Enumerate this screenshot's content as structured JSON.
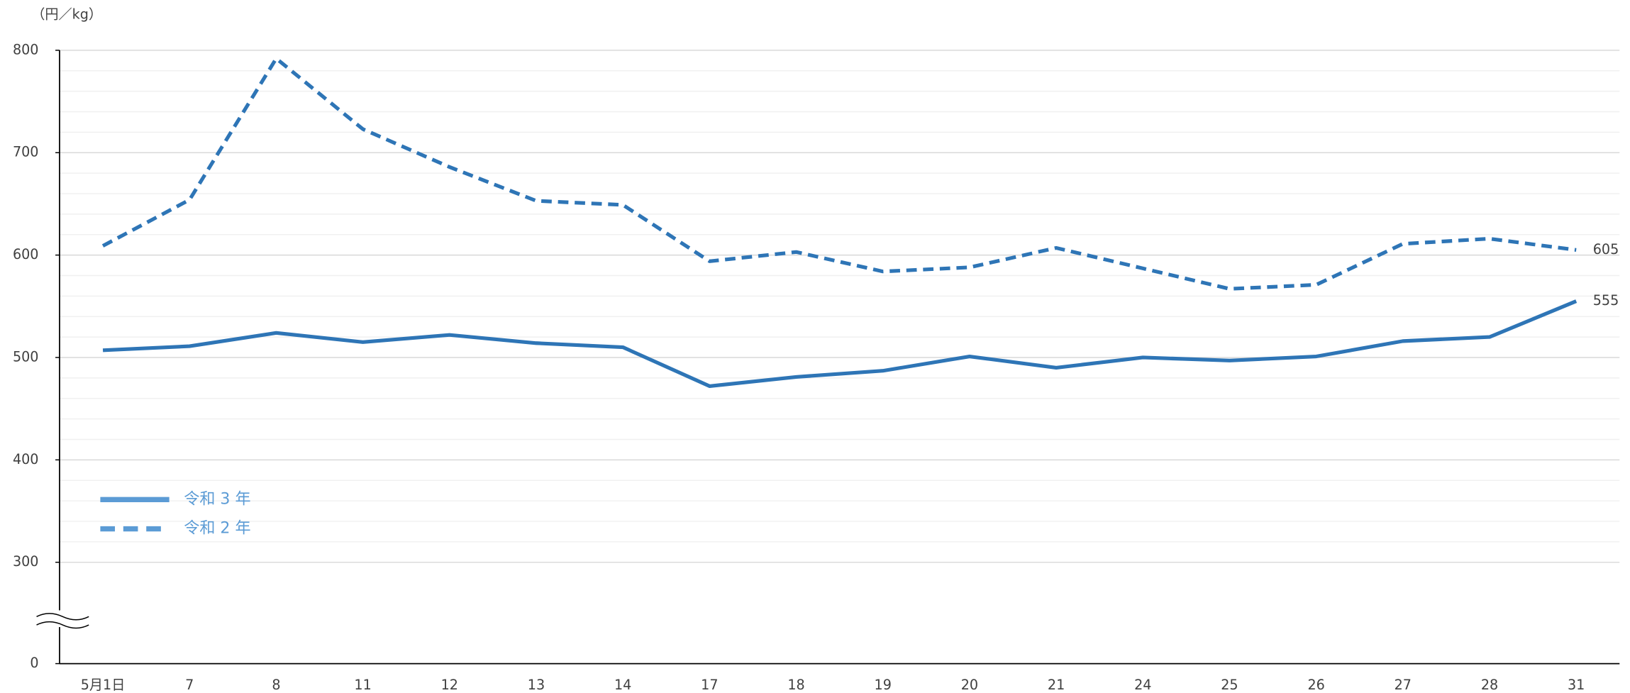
{
  "chart_data": {
    "type": "line",
    "y_label": "（円／kg）",
    "categories": [
      "5月1日",
      "7",
      "8",
      "11",
      "12",
      "13",
      "14",
      "17",
      "18",
      "19",
      "20",
      "21",
      "24",
      "25",
      "26",
      "27",
      "28",
      "31"
    ],
    "series": [
      {
        "name": "令和 3 年",
        "color": "#2e75b6",
        "dash": false,
        "values": [
          507,
          511,
          524,
          515,
          522,
          514,
          510,
          472,
          481,
          487,
          501,
          490,
          500,
          497,
          501,
          516,
          520,
          555
        ]
      },
      {
        "name": "令和 2 年",
        "color": "#2e75b6",
        "dash": true,
        "values": [
          609,
          654,
          792,
          723,
          686,
          653,
          649,
          594,
          603,
          584,
          588,
          607,
          587,
          567,
          571,
          611,
          616,
          605
        ]
      }
    ],
    "ylim": [
      0,
      800
    ],
    "axis_break": [
      0,
      300
    ],
    "yticks": [
      0,
      300,
      400,
      500,
      600,
      700,
      800
    ],
    "minor_yticks": [
      320,
      340,
      360,
      380,
      420,
      440,
      460,
      480,
      520,
      540,
      560,
      580,
      620,
      640,
      660,
      680,
      720,
      740,
      760,
      780
    ],
    "grid": true
  }
}
